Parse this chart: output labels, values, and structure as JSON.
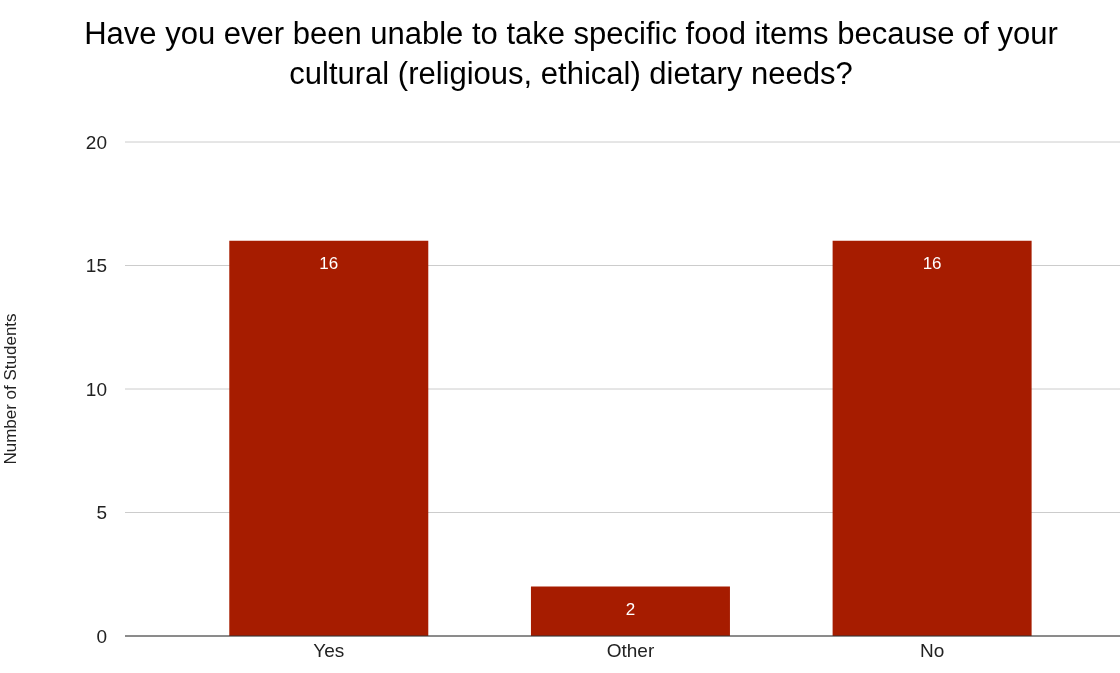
{
  "chart_data": {
    "type": "bar",
    "title": "Have you ever been unable to take specific food items because of your cultural (religious, ethical) dietary needs?",
    "ylabel": "Number of Students",
    "categories": [
      "Yes",
      "Other",
      "No"
    ],
    "values": [
      16,
      2,
      16
    ],
    "color": "#a61c00",
    "ylim": [
      0,
      20
    ],
    "yticks": [
      0,
      5,
      10,
      15,
      20
    ],
    "grid": "y",
    "data_labels": true
  }
}
